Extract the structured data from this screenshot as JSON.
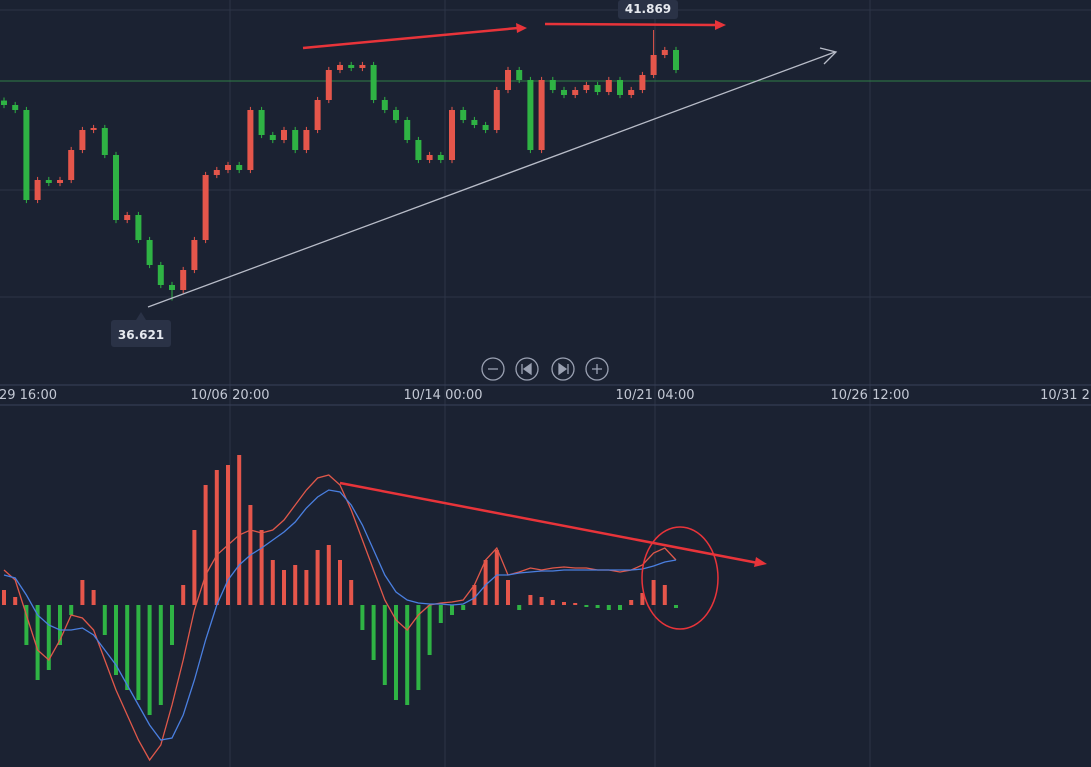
{
  "chart_data": [
    {
      "type": "candlestick",
      "up_color": "#e5564b",
      "down_color": "#2fb344",
      "ylim": [
        34.982,
        42.451
      ],
      "xtick_labels": [
        "29 16:00",
        "10/06 20:00",
        "10/14 00:00",
        "10/21 04:00",
        "10/26 12:00",
        "10/31 2"
      ],
      "open": [
        40.5,
        40.414,
        40.317,
        38.571,
        38.959,
        38.901,
        38.959,
        39.541,
        39.929,
        39.968,
        39.444,
        38.183,
        38.28,
        37.795,
        37.31,
        36.922,
        36.825,
        37.213,
        37.795,
        39.056,
        39.153,
        39.25,
        39.153,
        40.317,
        39.832,
        39.735,
        39.929,
        39.541,
        39.929,
        40.511,
        41.093,
        41.19,
        41.132,
        41.19,
        40.511,
        40.317,
        40.123,
        39.735,
        39.347,
        39.444,
        39.347,
        40.317,
        40.123,
        40.026,
        39.929,
        40.705,
        41.093,
        40.899,
        39.541,
        40.899,
        40.705,
        40.608,
        40.705,
        40.802,
        40.666,
        40.899,
        40.608,
        40.705,
        40.996,
        41.384,
        41.481
      ],
      "high": [
        40.56,
        40.474,
        40.377,
        39.019,
        39.019,
        39.019,
        39.601,
        39.989,
        40.028,
        40.028,
        39.504,
        38.34,
        38.34,
        37.855,
        37.37,
        36.982,
        37.273,
        37.855,
        39.116,
        39.213,
        39.31,
        39.31,
        40.377,
        40.377,
        39.892,
        39.989,
        39.989,
        39.989,
        40.571,
        41.153,
        41.25,
        41.25,
        41.25,
        41.25,
        40.571,
        40.377,
        40.183,
        39.795,
        39.504,
        39.504,
        40.377,
        40.377,
        40.183,
        40.086,
        40.765,
        41.153,
        41.153,
        40.959,
        40.959,
        40.959,
        40.765,
        40.765,
        40.862,
        40.862,
        40.959,
        40.959,
        40.765,
        41.056,
        41.869,
        41.541,
        41.541
      ],
      "low": [
        40.354,
        40.257,
        38.511,
        38.511,
        38.841,
        38.841,
        38.899,
        39.481,
        39.869,
        39.384,
        38.123,
        38.123,
        37.735,
        37.25,
        36.862,
        36.621,
        36.765,
        37.153,
        37.735,
        38.996,
        39.093,
        39.093,
        39.093,
        39.772,
        39.675,
        39.675,
        39.481,
        39.481,
        39.869,
        40.451,
        41.033,
        41.072,
        41.072,
        40.451,
        40.257,
        40.063,
        39.675,
        39.287,
        39.287,
        39.287,
        39.287,
        40.063,
        39.966,
        39.869,
        39.869,
        40.645,
        40.839,
        39.481,
        39.481,
        40.645,
        40.548,
        40.548,
        40.645,
        40.606,
        40.606,
        40.548,
        40.548,
        40.645,
        40.936,
        41.324,
        41.033
      ],
      "close": [
        40.414,
        40.317,
        38.571,
        38.959,
        38.901,
        38.959,
        39.541,
        39.929,
        39.968,
        39.444,
        38.183,
        38.28,
        37.795,
        37.31,
        36.922,
        36.825,
        37.213,
        37.795,
        39.056,
        39.153,
        39.25,
        39.153,
        40.317,
        39.832,
        39.735,
        39.929,
        39.541,
        39.929,
        40.511,
        41.093,
        41.19,
        41.132,
        41.19,
        40.511,
        40.317,
        40.123,
        39.735,
        39.347,
        39.444,
        39.347,
        40.317,
        40.123,
        40.026,
        39.929,
        40.705,
        41.093,
        40.899,
        39.541,
        40.899,
        40.705,
        40.608,
        40.705,
        40.802,
        40.666,
        40.899,
        40.608,
        40.705,
        40.996,
        41.384,
        41.481,
        41.093
      ]
    },
    {
      "type": "macd",
      "ylim": [
        -0.324,
        0.39
      ],
      "histogram": {
        "up_color": "#e5564b",
        "down_color": "#2fb344",
        "values": [
          0.03,
          0.016,
          -0.08,
          -0.15,
          -0.13,
          -0.08,
          -0.02,
          0.05,
          0.03,
          -0.06,
          -0.14,
          -0.17,
          -0.19,
          -0.22,
          -0.2,
          -0.08,
          0.04,
          0.15,
          0.24,
          0.27,
          0.28,
          0.3,
          0.2,
          0.15,
          0.09,
          0.07,
          0.08,
          0.07,
          0.11,
          0.12,
          0.09,
          0.05,
          -0.05,
          -0.11,
          -0.16,
          -0.19,
          -0.2,
          -0.17,
          -0.1,
          -0.036,
          -0.02,
          -0.01,
          0.04,
          0.09,
          0.11,
          0.05,
          -0.01,
          0.02,
          0.016,
          0.01,
          0.006,
          0.004,
          -0.004,
          -0.006,
          -0.01,
          -0.01,
          0.01,
          0.024,
          0.05,
          0.04,
          -0.006
        ]
      },
      "series": [
        {
          "color": "#e0584a",
          "values": [
            0.07,
            0.05,
            -0.02,
            -0.09,
            -0.11,
            -0.07,
            -0.02,
            -0.026,
            -0.05,
            -0.11,
            -0.17,
            -0.22,
            -0.27,
            -0.31,
            -0.28,
            -0.2,
            -0.11,
            -0.01,
            0.06,
            0.1,
            0.12,
            0.14,
            0.15,
            0.144,
            0.15,
            0.17,
            0.2,
            0.23,
            0.254,
            0.26,
            0.24,
            0.19,
            0.13,
            0.07,
            0.01,
            -0.03,
            -0.05,
            -0.02,
            0,
            0.004,
            0.006,
            0.01,
            0.04,
            0.09,
            0.114,
            0.06,
            0.066,
            0.074,
            0.07,
            0.074,
            0.076,
            0.074,
            0.074,
            0.07,
            0.07,
            0.066,
            0.07,
            0.08,
            0.104,
            0.114,
            0.09
          ]
        },
        {
          "color": "#4a7fe0",
          "values": [
            0.06,
            0.054,
            0.02,
            -0.02,
            -0.04,
            -0.05,
            -0.05,
            -0.046,
            -0.06,
            -0.09,
            -0.12,
            -0.16,
            -0.2,
            -0.24,
            -0.27,
            -0.266,
            -0.22,
            -0.15,
            -0.07,
            0,
            0.05,
            0.08,
            0.1,
            0.114,
            0.13,
            0.146,
            0.166,
            0.194,
            0.216,
            0.23,
            0.226,
            0.2,
            0.16,
            0.11,
            0.06,
            0.026,
            0.01,
            0.004,
            0.002,
            0.002,
            0,
            0.002,
            0.014,
            0.04,
            0.06,
            0.06,
            0.064,
            0.066,
            0.068,
            0.068,
            0.07,
            0.07,
            0.07,
            0.07,
            0.07,
            0.07,
            0.07,
            0.072,
            0.078,
            0.086,
            0.09
          ]
        }
      ]
    }
  ]
}
